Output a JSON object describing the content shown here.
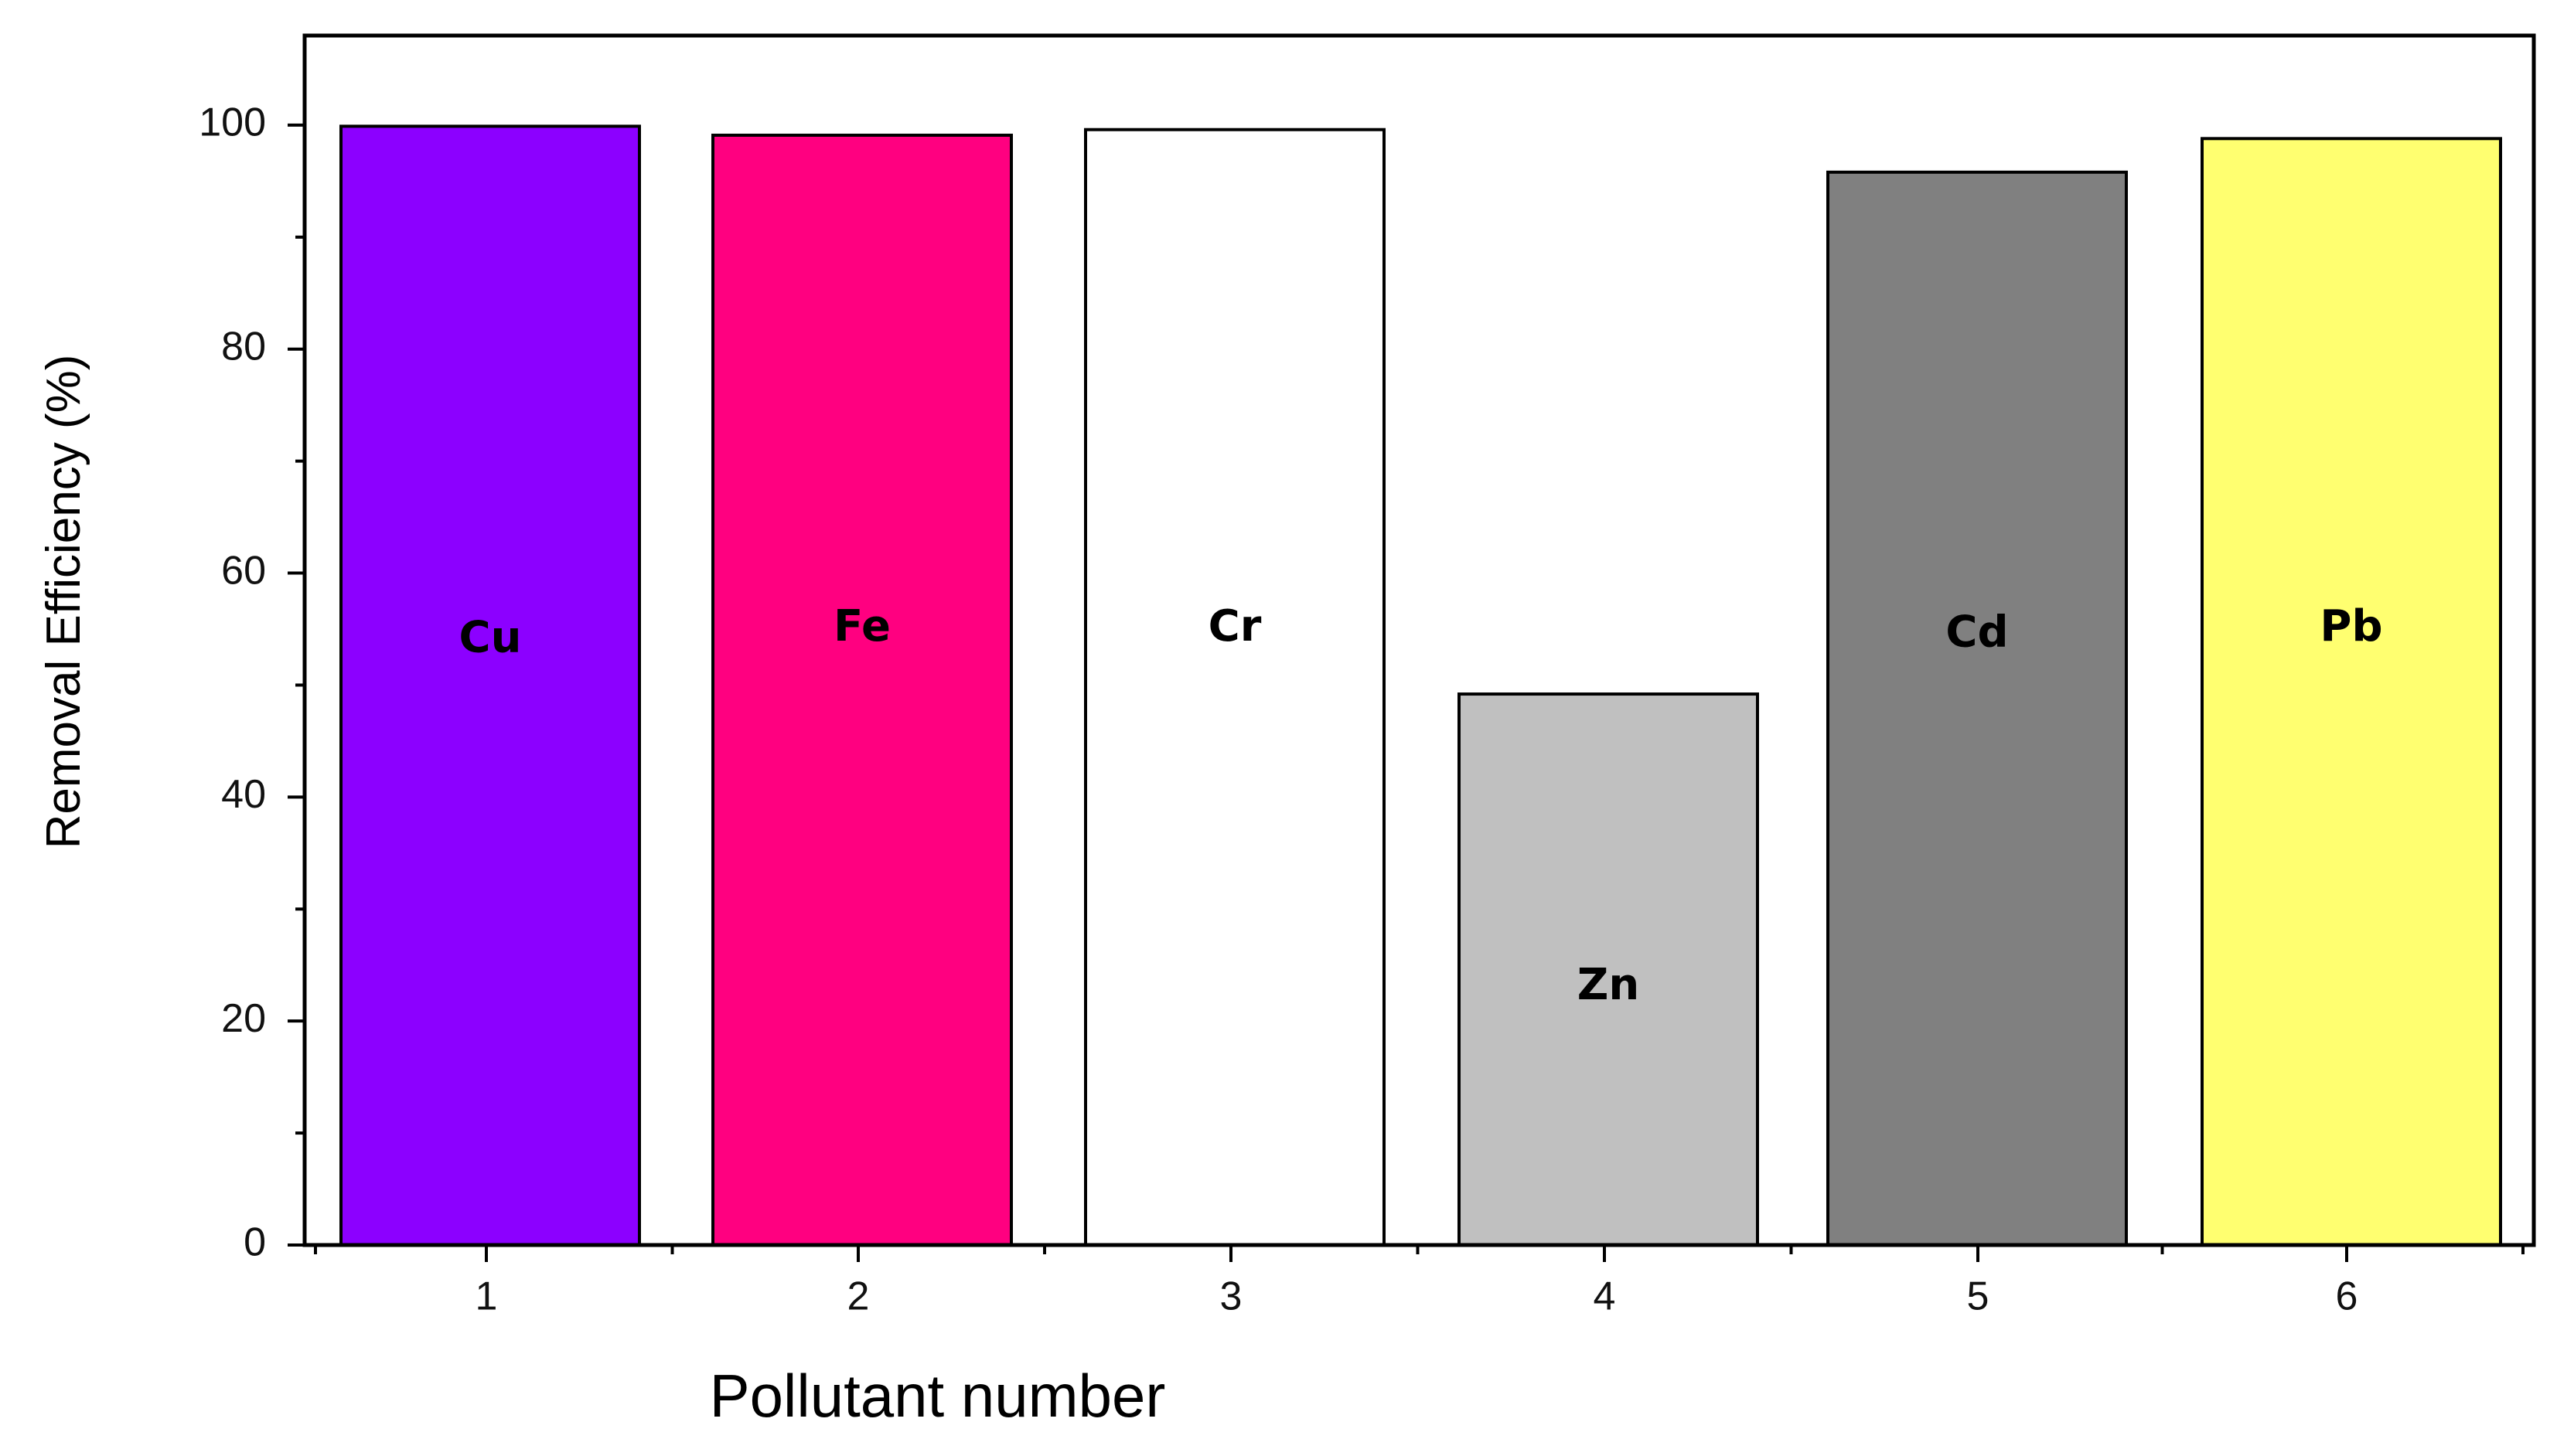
{
  "chart_data": {
    "type": "bar",
    "title": "",
    "xlabel": "Pollutant number",
    "ylabel": "Removal Efficiency (%)",
    "categories": [
      "1",
      "2",
      "3",
      "4",
      "5",
      "6"
    ],
    "values": [
      99.9,
      99.1,
      99.6,
      49.2,
      95.8,
      98.8
    ],
    "bar_labels": [
      "Cu",
      "Fe",
      "Cr",
      "Zn",
      "Cd",
      "Pb"
    ],
    "bar_label_values": [
      54,
      55,
      55,
      23,
      54.5,
      55
    ],
    "colors": [
      "#8c00ff",
      "#ff0080",
      "#ffffff",
      "#c0c0c0",
      "#808080",
      "#ffff70"
    ],
    "ylim": [
      0,
      108
    ],
    "y_ticks": [
      0,
      20,
      40,
      60,
      80,
      100
    ],
    "y_minor_ticks": [
      10,
      30,
      50,
      70,
      90
    ],
    "grid": false,
    "legend": "none"
  }
}
